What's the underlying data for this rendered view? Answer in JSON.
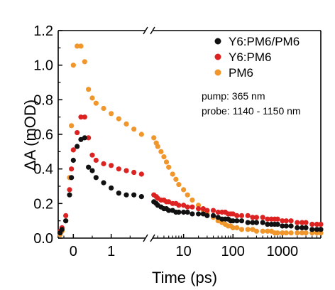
{
  "chart_data": {
    "type": "scatter",
    "xlabel": "Time (ps)",
    "ylabel": "ΔA (mOD)",
    "x_scale": "split: linear (-0.4 to 2) then log (2 to 6000), axis break at 2 ps",
    "ylim": [
      0,
      1.2
    ],
    "yticks": [
      "0.0",
      "0.2",
      "0.4",
      "0.6",
      "0.8",
      "1.0",
      "1.2"
    ],
    "xticks": [
      "0",
      "1",
      "10",
      "100",
      "1000"
    ],
    "grid": false,
    "legend_position": "top-right",
    "annotations": [
      "pump: 365 nm",
      "probe: 1140 - 1150 nm"
    ],
    "series": [
      {
        "name": "Y6:PM6/PM6",
        "color": "#111111",
        "x": [
          -0.35,
          -0.3,
          -0.2,
          -0.1,
          -0.05,
          0,
          0.1,
          0.2,
          0.3,
          0.4,
          0.5,
          0.6,
          0.8,
          1.0,
          1.2,
          1.4,
          1.6,
          1.8,
          2.5,
          2.8,
          3,
          3.5,
          4,
          4.5,
          5,
          6,
          7,
          8,
          10,
          12,
          15,
          20,
          25,
          30,
          40,
          50,
          60,
          70,
          80,
          90,
          100,
          120,
          150,
          200,
          250,
          300,
          400,
          500,
          600,
          700,
          800,
          1000,
          1200,
          1500,
          2000,
          2500,
          3000,
          4000,
          5000,
          6000
        ],
        "y": [
          0.03,
          0.05,
          0.1,
          0.25,
          0.35,
          0.45,
          0.53,
          0.57,
          0.58,
          0.41,
          0.39,
          0.35,
          0.32,
          0.29,
          0.26,
          0.25,
          0.25,
          0.24,
          0.21,
          0.2,
          0.19,
          0.18,
          0.17,
          0.17,
          0.16,
          0.16,
          0.15,
          0.15,
          0.15,
          0.15,
          0.14,
          0.14,
          0.14,
          0.13,
          0.13,
          0.12,
          0.11,
          0.11,
          0.11,
          0.1,
          0.1,
          0.1,
          0.1,
          0.09,
          0.09,
          0.09,
          0.09,
          0.08,
          0.08,
          0.08,
          0.08,
          0.07,
          0.07,
          0.07,
          0.06,
          0.06,
          0.06,
          0.05,
          0.05,
          0.05
        ]
      },
      {
        "name": "Y6:PM6",
        "color": "#dd2222",
        "x": [
          -0.35,
          -0.3,
          -0.2,
          -0.1,
          -0.05,
          0,
          0.1,
          0.2,
          0.3,
          0.4,
          0.5,
          0.6,
          0.8,
          1.0,
          1.2,
          1.4,
          1.6,
          1.8,
          2.5,
          2.8,
          3,
          3.5,
          4,
          4.5,
          5,
          6,
          7,
          8,
          10,
          12,
          15,
          20,
          25,
          30,
          40,
          50,
          60,
          70,
          80,
          90,
          100,
          120,
          150,
          200,
          250,
          300,
          400,
          500,
          600,
          700,
          800,
          1000,
          1200,
          1500,
          2000,
          2500,
          3000,
          4000,
          5000,
          6000
        ],
        "y": [
          0.04,
          0.06,
          0.13,
          0.28,
          0.4,
          0.51,
          0.61,
          0.7,
          0.7,
          0.58,
          0.48,
          0.45,
          0.43,
          0.42,
          0.4,
          0.39,
          0.38,
          0.37,
          0.25,
          0.24,
          0.23,
          0.22,
          0.22,
          0.21,
          0.21,
          0.2,
          0.2,
          0.19,
          0.19,
          0.18,
          0.18,
          0.17,
          0.17,
          0.16,
          0.16,
          0.15,
          0.15,
          0.15,
          0.14,
          0.14,
          0.14,
          0.13,
          0.13,
          0.13,
          0.12,
          0.12,
          0.12,
          0.11,
          0.11,
          0.11,
          0.11,
          0.1,
          0.1,
          0.1,
          0.09,
          0.09,
          0.09,
          0.08,
          0.08,
          0.08
        ]
      },
      {
        "name": "PM6",
        "color": "#f0962a",
        "x": [
          -0.35,
          -0.3,
          -0.2,
          -0.1,
          -0.05,
          0,
          0.1,
          0.2,
          0.3,
          0.4,
          0.5,
          0.6,
          0.8,
          1.0,
          1.2,
          1.4,
          1.6,
          1.8,
          2.5,
          2.8,
          3,
          3.5,
          4,
          4.5,
          5,
          6,
          7,
          8,
          10,
          12,
          15,
          20,
          25,
          30,
          40,
          50,
          60,
          70,
          80,
          90,
          100,
          120,
          150,
          200,
          250,
          300,
          400,
          500,
          600,
          700,
          800,
          1000,
          1200,
          1500,
          2000,
          2500,
          3000,
          4000,
          5000,
          6000
        ],
        "y": [
          0.02,
          0.04,
          0.1,
          0.35,
          0.65,
          1.0,
          1.11,
          1.11,
          1.02,
          0.86,
          0.81,
          0.78,
          0.75,
          0.72,
          0.69,
          0.66,
          0.63,
          0.6,
          0.58,
          0.55,
          0.53,
          0.5,
          0.47,
          0.44,
          0.41,
          0.37,
          0.34,
          0.31,
          0.28,
          0.25,
          0.22,
          0.19,
          0.16,
          0.14,
          0.12,
          0.1,
          0.09,
          0.08,
          0.07,
          0.07,
          0.06,
          0.06,
          0.05,
          0.05,
          0.05,
          0.04,
          0.04,
          0.04,
          0.04,
          0.03,
          0.03,
          0.03,
          0.03,
          0.03,
          0.03,
          0.03,
          0.03,
          0.03,
          0.03,
          0.03
        ]
      }
    ]
  }
}
